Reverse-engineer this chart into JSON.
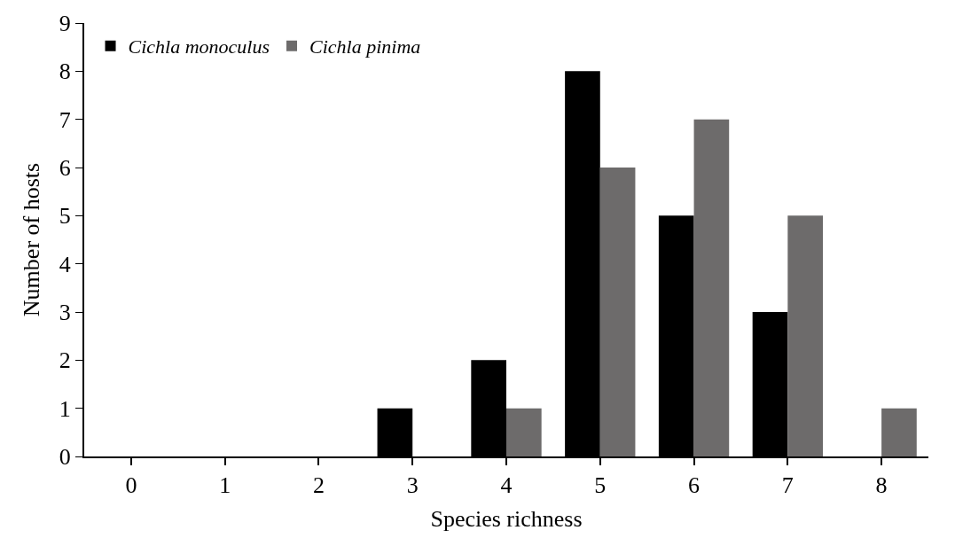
{
  "chart_data": {
    "type": "bar",
    "xlabel": "Species richness",
    "ylabel": "Number of hosts",
    "categories": [
      "0",
      "1",
      "2",
      "3",
      "4",
      "5",
      "6",
      "7",
      "8"
    ],
    "series": [
      {
        "name": "Cichla monoculus",
        "color": "#000000",
        "values": [
          0,
          0,
          0,
          1,
          2,
          8,
          5,
          3,
          0
        ]
      },
      {
        "name": "Cichla pinima",
        "color": "#6d6b6b",
        "values": [
          0,
          0,
          0,
          0,
          1,
          6,
          7,
          5,
          1
        ]
      }
    ],
    "ylim": [
      0,
      9
    ],
    "yticks": [
      0,
      1,
      2,
      3,
      4,
      5,
      6,
      7,
      8,
      9
    ],
    "legend": "top left"
  }
}
